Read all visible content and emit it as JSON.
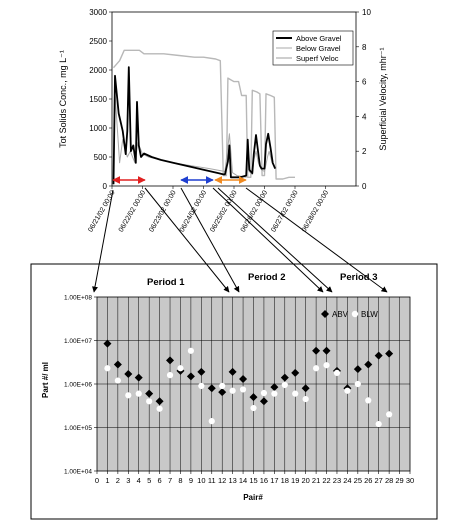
{
  "chart_data": [
    {
      "type": "line",
      "ylabel": "Tot Solids Conc., mg L⁻¹",
      "y2label": "Superficial Velocity, mhr⁻¹",
      "ylim": [
        0,
        3000
      ],
      "y_ticks": [
        "0",
        "500",
        "1000",
        "1500",
        "2000",
        "2500",
        "3000"
      ],
      "y2lim": [
        0,
        10
      ],
      "y2_ticks": [
        "0",
        "2",
        "4",
        "6",
        "8",
        "10"
      ],
      "x_ticks": [
        "06/21/02 00:00",
        "06/22/02 00:00",
        "06/23/02 00:00",
        "06/24/02 00:00",
        "06/25/02 00:00",
        "06/26/02 00:00",
        "06/27/02 00:00",
        "06/28/02 00:00"
      ],
      "xlim_days": [
        0,
        8
      ],
      "legend_position": "top-right",
      "series": [
        {
          "name": "Above Gravel",
          "color": "#000000",
          "axis": "left",
          "points": [
            [
              0.05,
              30
            ],
            [
              0.1,
              1900
            ],
            [
              0.22,
              1250
            ],
            [
              0.35,
              950
            ],
            [
              0.45,
              550
            ],
            [
              0.5,
              950
            ],
            [
              0.55,
              2050
            ],
            [
              0.62,
              600
            ],
            [
              0.7,
              700
            ],
            [
              0.78,
              400
            ],
            [
              0.82,
              1450
            ],
            [
              0.88,
              700
            ],
            [
              0.95,
              500
            ],
            [
              1.05,
              560
            ],
            [
              1.3,
              500
            ],
            [
              1.6,
              450
            ],
            [
              2.0,
              400
            ],
            [
              2.5,
              340
            ],
            [
              3.0,
              280
            ],
            [
              3.5,
              220
            ],
            [
              3.65,
              200
            ],
            [
              3.7,
              200
            ],
            [
              3.8,
              420
            ],
            [
              3.85,
              700
            ],
            [
              3.9,
              150
            ],
            [
              4.0,
              150
            ],
            [
              4.2,
              150
            ],
            [
              4.4,
              180
            ],
            [
              4.45,
              800
            ],
            [
              4.5,
              280
            ],
            [
              4.6,
              220
            ],
            [
              4.65,
              550
            ],
            [
              4.72,
              880
            ],
            [
              4.8,
              550
            ],
            [
              4.85,
              350
            ],
            [
              4.9,
              300
            ],
            [
              5.0,
              300
            ],
            [
              5.05,
              720
            ],
            [
              5.12,
              900
            ],
            [
              5.2,
              650
            ],
            [
              5.27,
              400
            ],
            [
              5.35,
              300
            ]
          ]
        },
        {
          "name": "Below Gravel",
          "color": "#aaaaaa",
          "axis": "left",
          "points": [
            [
              0.05,
              30
            ],
            [
              0.1,
              1600
            ],
            [
              0.25,
              400
            ],
            [
              0.35,
              800
            ],
            [
              0.5,
              500
            ],
            [
              0.6,
              600
            ],
            [
              0.75,
              400
            ],
            [
              0.85,
              750
            ],
            [
              1.0,
              550
            ],
            [
              1.2,
              500
            ],
            [
              1.6,
              450
            ],
            [
              2.0,
              400
            ],
            [
              2.6,
              350
            ],
            [
              3.2,
              300
            ],
            [
              3.7,
              250
            ],
            [
              3.85,
              900
            ],
            [
              3.95,
              230
            ],
            [
              4.1,
              180
            ],
            [
              4.4,
              150
            ],
            [
              4.45,
              550
            ],
            [
              4.5,
              250
            ],
            [
              4.6,
              200
            ],
            [
              4.65,
              450
            ],
            [
              4.72,
              600
            ],
            [
              4.8,
              400
            ],
            [
              4.9,
              280
            ],
            [
              5.0,
              250
            ],
            [
              5.1,
              500
            ],
            [
              5.15,
              600
            ],
            [
              5.25,
              400
            ],
            [
              5.35,
              300
            ]
          ]
        },
        {
          "name": "Superf Veloc",
          "color": "#b8b8b8",
          "axis": "right",
          "points": [
            [
              0.05,
              6.8
            ],
            [
              0.25,
              7.2
            ],
            [
              0.4,
              7.8
            ],
            [
              0.9,
              7.8
            ],
            [
              1.05,
              7.6
            ],
            [
              1.3,
              7.6
            ],
            [
              1.7,
              7.6
            ],
            [
              2.2,
              7.5
            ],
            [
              2.7,
              7.4
            ],
            [
              3.0,
              7.4
            ],
            [
              3.4,
              7.3
            ],
            [
              3.55,
              7.2
            ],
            [
              3.65,
              0.6
            ],
            [
              3.75,
              0.6
            ],
            [
              3.8,
              6.2
            ],
            [
              3.9,
              6.1
            ],
            [
              4.0,
              6.0
            ],
            [
              4.15,
              6.0
            ],
            [
              4.25,
              5.2
            ],
            [
              4.4,
              5.2
            ],
            [
              4.45,
              0.5
            ],
            [
              4.55,
              0.5
            ],
            [
              4.6,
              5.5
            ],
            [
              4.75,
              5.4
            ],
            [
              4.85,
              5.3
            ],
            [
              4.92,
              0.6
            ],
            [
              5.0,
              0.6
            ],
            [
              5.05,
              5.3
            ],
            [
              5.2,
              5.2
            ],
            [
              5.32,
              5.1
            ],
            [
              5.38,
              0.4
            ],
            [
              5.6,
              0.4
            ],
            [
              5.8,
              0.5
            ],
            [
              6.0,
              0.5
            ]
          ]
        }
      ]
    },
    {
      "type": "scatter",
      "xlabel": "Pair#",
      "ylabel": "Part #/ ml",
      "x_ticks": [
        "0",
        "1",
        "2",
        "3",
        "4",
        "5",
        "6",
        "7",
        "8",
        "9",
        "10",
        "11",
        "12",
        "13",
        "14",
        "15",
        "16",
        "17",
        "18",
        "19",
        "20",
        "21",
        "22",
        "23",
        "24",
        "25",
        "26",
        "27",
        "28",
        "29",
        "30"
      ],
      "xlim": [
        0,
        30
      ],
      "y_log": true,
      "ylim": [
        10000,
        100000000
      ],
      "y_ticks": [
        "1.00E+04",
        "1.00E+05",
        "1.00E+06",
        "1.00E+07",
        "1.00E+08"
      ],
      "grid": true,
      "legend_position": "top-right",
      "series": [
        {
          "name": "ABV",
          "color": "#000000",
          "marker": "diamond",
          "points": [
            [
              1,
              8500000
            ],
            [
              2,
              2800000
            ],
            [
              3,
              1700000
            ],
            [
              4,
              1400000
            ],
            [
              5,
              600000
            ],
            [
              6,
              400000
            ],
            [
              7,
              3500000
            ],
            [
              8,
              2000000
            ],
            [
              9,
              1500000
            ],
            [
              10,
              1900000
            ],
            [
              11,
              800000
            ],
            [
              12,
              650000
            ],
            [
              13,
              1900000
            ],
            [
              14,
              1300000
            ],
            [
              15,
              500000
            ],
            [
              16,
              400000
            ],
            [
              17,
              850000
            ],
            [
              18,
              1400000
            ],
            [
              19,
              1800000
            ],
            [
              20,
              800000
            ],
            [
              21,
              5800000
            ],
            [
              22,
              5800000
            ],
            [
              23,
              2000000
            ],
            [
              24,
              800000
            ],
            [
              25,
              2200000
            ],
            [
              26,
              2800000
            ],
            [
              27,
              4500000
            ],
            [
              28,
              5000000
            ]
          ]
        },
        {
          "name": "BLW",
          "color": "#ffffff",
          "marker": "circle",
          "points": [
            [
              1,
              2300000
            ],
            [
              2,
              1200000
            ],
            [
              3,
              550000
            ],
            [
              4,
              600000
            ],
            [
              5,
              400000
            ],
            [
              6,
              270000
            ],
            [
              7,
              1600000
            ],
            [
              8,
              2300000
            ],
            [
              9,
              5800000
            ],
            [
              10,
              900000
            ],
            [
              11,
              140000
            ],
            [
              12,
              900000
            ],
            [
              13,
              700000
            ],
            [
              14,
              750000
            ],
            [
              15,
              280000
            ],
            [
              16,
              620000
            ],
            [
              17,
              600000
            ],
            [
              18,
              950000
            ],
            [
              19,
              600000
            ],
            [
              20,
              450000
            ],
            [
              21,
              2300000
            ],
            [
              22,
              2700000
            ],
            [
              23,
              1800000
            ],
            [
              24,
              700000
            ],
            [
              25,
              1000000
            ],
            [
              26,
              420000
            ],
            [
              27,
              120000
            ],
            [
              28,
              200000
            ]
          ]
        }
      ]
    }
  ],
  "periods": [
    {
      "label": "Period 1"
    },
    {
      "label": "Period 2"
    },
    {
      "label": "Period 3"
    }
  ],
  "colors": {
    "red_arrow": "#e02020",
    "blue_arrow": "#1f3fd0",
    "orange_arrow": "#f08a20",
    "plot_background": "#c8c8c8"
  }
}
